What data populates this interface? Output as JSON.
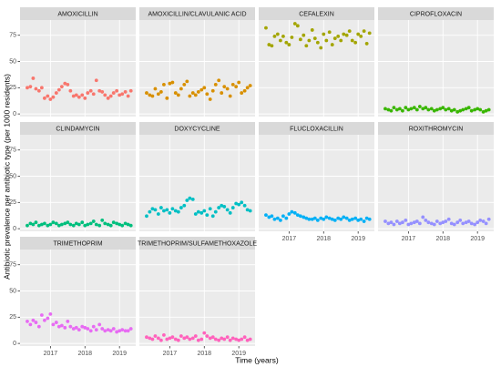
{
  "chart_data": {
    "type": "scatter",
    "xlabel": "Time (years)",
    "ylabel": "Antibiotic prevalence per antibiotic type (per 1000 residents)",
    "x": [
      2016.33,
      2016.42,
      2016.5,
      2016.58,
      2016.67,
      2016.75,
      2016.83,
      2016.92,
      2017.0,
      2017.08,
      2017.17,
      2017.25,
      2017.33,
      2017.42,
      2017.5,
      2017.58,
      2017.67,
      2017.75,
      2017.83,
      2017.92,
      2018.0,
      2018.08,
      2018.17,
      2018.25,
      2018.33,
      2018.42,
      2018.5,
      2018.58,
      2018.67,
      2018.75,
      2018.83,
      2018.92,
      2019.0,
      2019.08,
      2019.17,
      2019.25,
      2019.33
    ],
    "xlim": [
      2016.12,
      2019.47
    ],
    "xticks": [
      2017,
      2018,
      2019
    ],
    "ylim": [
      -2.5,
      89.5
    ],
    "yticks": [
      0,
      25,
      50,
      75
    ],
    "grid": true,
    "series": [
      {
        "name": "AMOXICILLIN",
        "color": "#F8766D",
        "values": [
          25,
          26,
          34,
          24,
          22,
          25,
          15,
          17,
          14,
          16,
          20,
          23,
          26,
          29,
          28,
          22,
          17,
          18,
          16,
          18,
          15,
          20,
          22,
          19,
          32,
          22,
          21,
          18,
          15,
          17,
          20,
          22,
          18,
          19,
          21,
          17,
          22
        ]
      },
      {
        "name": "AMOXICILLIN/CLAVULANIC ACID",
        "color": "#D89000",
        "values": [
          20,
          18,
          17,
          24,
          19,
          21,
          28,
          15,
          29,
          30,
          20,
          18,
          24,
          28,
          31,
          17,
          20,
          18,
          21,
          23,
          25,
          19,
          14,
          22,
          28,
          32,
          20,
          26,
          24,
          17,
          28,
          26,
          30,
          20,
          22,
          25,
          27
        ]
      },
      {
        "name": "CEFALEXIN",
        "color": "#A3A500",
        "values": [
          82,
          66,
          65,
          74,
          76,
          70,
          74,
          68,
          66,
          73,
          86,
          84,
          71,
          75,
          65,
          70,
          80,
          72,
          68,
          63,
          76,
          70,
          78,
          66,
          72,
          74,
          70,
          76,
          75,
          79,
          70,
          68,
          76,
          74,
          79,
          67,
          77
        ]
      },
      {
        "name": "CIPROFLOXACIN",
        "color": "#39B600",
        "values": [
          5,
          4,
          3,
          6,
          4,
          5,
          3,
          6,
          4,
          5,
          6,
          4,
          7,
          5,
          6,
          4,
          5,
          3,
          4,
          5,
          6,
          4,
          5,
          3,
          4,
          2,
          3,
          4,
          5,
          6,
          3,
          4,
          5,
          4,
          2,
          3,
          4
        ]
      },
      {
        "name": "CLINDAMYCIN",
        "color": "#00BF7D",
        "values": [
          3,
          5,
          4,
          6,
          3,
          4,
          5,
          3,
          4,
          6,
          5,
          3,
          4,
          5,
          6,
          4,
          3,
          5,
          4,
          6,
          3,
          4,
          5,
          7,
          4,
          3,
          8,
          5,
          4,
          3,
          6,
          5,
          4,
          3,
          5,
          4,
          3
        ]
      },
      {
        "name": "DOXYCYCLINE",
        "color": "#00BFC4",
        "values": [
          12,
          16,
          19,
          18,
          14,
          20,
          17,
          18,
          15,
          19,
          17,
          16,
          20,
          22,
          27,
          29,
          28,
          14,
          16,
          15,
          17,
          13,
          19,
          12,
          16,
          20,
          22,
          21,
          18,
          15,
          20,
          24,
          23,
          25,
          22,
          18,
          17
        ]
      },
      {
        "name": "FLUCLOXACILLIN",
        "color": "#00B0F6",
        "values": [
          13,
          11,
          12,
          9,
          10,
          8,
          12,
          10,
          14,
          16,
          15,
          13,
          12,
          11,
          10,
          9,
          9,
          10,
          8,
          10,
          9,
          11,
          10,
          9,
          8,
          10,
          9,
          11,
          10,
          8,
          9,
          10,
          8,
          9,
          7,
          10,
          9
        ]
      },
      {
        "name": "ROXITHROMYCIN",
        "color": "#9590FF",
        "values": [
          7,
          5,
          6,
          4,
          7,
          5,
          6,
          8,
          4,
          5,
          6,
          7,
          5,
          11,
          8,
          6,
          5,
          4,
          7,
          5,
          6,
          7,
          9,
          5,
          4,
          6,
          8,
          5,
          6,
          7,
          5,
          4,
          6,
          8,
          7,
          5,
          9
        ]
      },
      {
        "name": "TRIMETHOPRIM",
        "color": "#E76BF3",
        "values": [
          21,
          18,
          22,
          20,
          16,
          27,
          22,
          24,
          28,
          18,
          20,
          16,
          17,
          15,
          21,
          16,
          14,
          15,
          13,
          16,
          15,
          14,
          12,
          16,
          13,
          18,
          14,
          12,
          13,
          12,
          14,
          11,
          12,
          13,
          12,
          12,
          14
        ]
      },
      {
        "name": "TRIMETHOPRIM/SULFAMETHOXAZOLE",
        "color": "#FF62BC",
        "values": [
          6,
          5,
          4,
          7,
          5,
          3,
          8,
          4,
          5,
          6,
          4,
          3,
          7,
          5,
          6,
          4,
          5,
          7,
          3,
          4,
          10,
          7,
          5,
          6,
          4,
          3,
          5,
          4,
          6,
          3,
          5,
          4,
          3,
          4,
          6,
          3,
          4
        ]
      }
    ]
  }
}
